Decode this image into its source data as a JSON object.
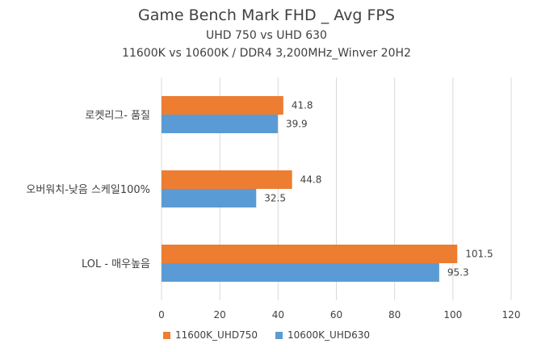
{
  "chart_data": {
    "type": "bar",
    "orientation": "horizontal",
    "title": "Game Bench Mark FHD _ Avg FPS",
    "subtitle_1": "UHD 750 vs UHD 630",
    "subtitle_2": "11600K vs 10600K / DDR4 3,200MHz_Winver 20H2",
    "categories": [
      "로켓리그- 품질",
      "오버워치-낮음 스케일100%",
      "LOL - 매우높음"
    ],
    "series": [
      {
        "name": "11600K_UHD750",
        "color": "#ED7D31",
        "values": [
          41.8,
          44.8,
          101.5
        ]
      },
      {
        "name": "10600K_UHD630",
        "color": "#5B9BD5",
        "values": [
          39.9,
          32.5,
          95.3
        ]
      }
    ],
    "xlim": [
      0,
      120
    ],
    "xticks": [
      "0",
      "20",
      "40",
      "60",
      "80",
      "100",
      "120"
    ],
    "grid": true,
    "legend_position": "bottom"
  }
}
